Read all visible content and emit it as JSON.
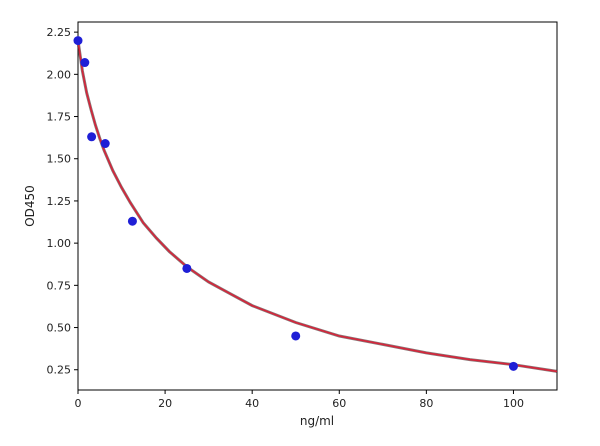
{
  "chart_data": {
    "type": "scatter",
    "xlabel": "ng/ml",
    "ylabel": "OD450",
    "xlim": [
      0,
      110
    ],
    "ylim": [
      0.13,
      2.31
    ],
    "xticks": [
      0,
      20,
      40,
      60,
      80,
      100
    ],
    "yticks": [
      0.25,
      0.5,
      0.75,
      1.0,
      1.25,
      1.5,
      1.75,
      2.0,
      2.25
    ],
    "ytick_labels": [
      "0.25",
      "0.50",
      "0.75",
      "1.00",
      "1.25",
      "1.50",
      "1.75",
      "2.00",
      "2.25"
    ],
    "grid": false,
    "series": [
      {
        "kind": "points",
        "color": "#1f1fd6",
        "x": [
          0,
          1.5625,
          3.125,
          6.25,
          12.5,
          25,
          50,
          100
        ],
        "y": [
          2.2,
          2.07,
          1.63,
          1.59,
          1.13,
          0.85,
          0.45,
          0.27
        ]
      },
      {
        "kind": "fit-curve",
        "color": "#d6243a",
        "shadow_color": "#3a1a1a",
        "x": [
          0,
          1,
          2,
          3,
          4,
          5,
          6,
          8,
          10,
          12,
          15,
          18,
          21,
          25,
          30,
          35,
          40,
          50,
          60,
          70,
          80,
          90,
          100,
          110
        ],
        "y": [
          2.2,
          2.02,
          1.89,
          1.79,
          1.7,
          1.62,
          1.55,
          1.43,
          1.33,
          1.24,
          1.12,
          1.03,
          0.95,
          0.86,
          0.77,
          0.7,
          0.63,
          0.53,
          0.45,
          0.4,
          0.35,
          0.31,
          0.28,
          0.24
        ]
      }
    ]
  }
}
